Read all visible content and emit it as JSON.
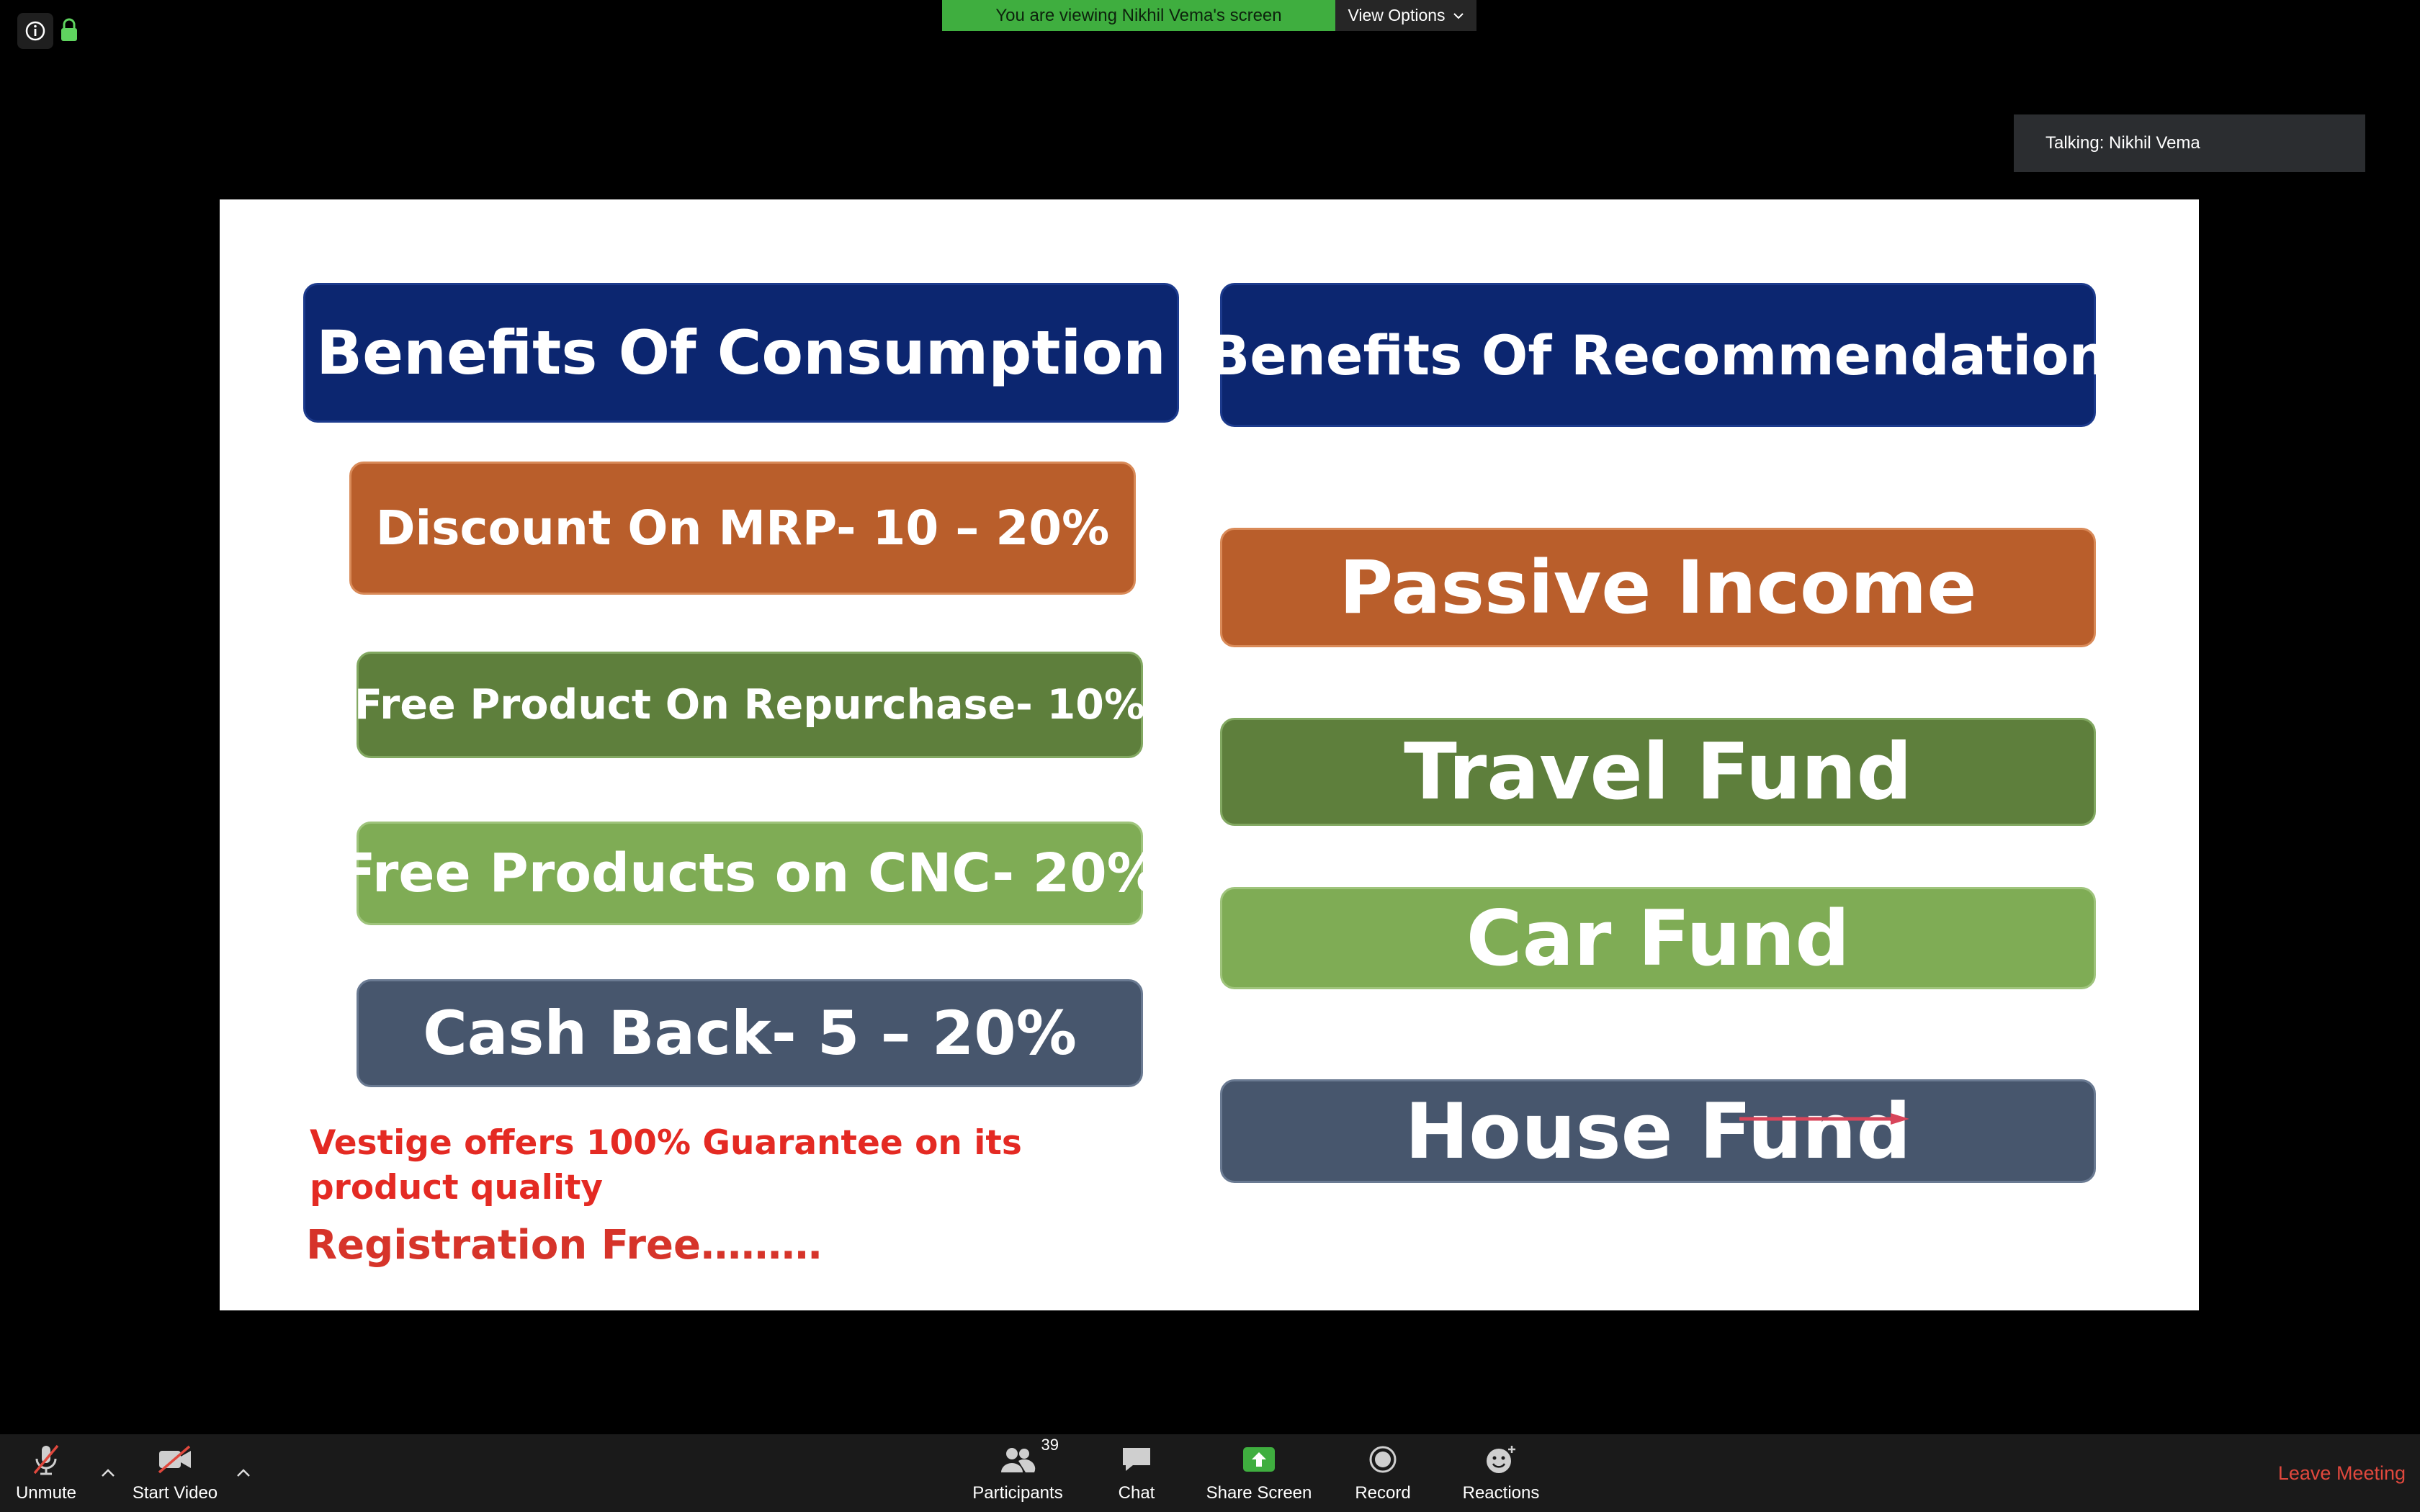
{
  "banner": {
    "viewing_text": "You are viewing Nikhil Vema's screen",
    "view_options_label": "View Options"
  },
  "talking": {
    "label": "Talking: Nikhil Vema"
  },
  "slide": {
    "left_heading": "Benefits Of Consumption",
    "right_heading": "Benefits Of Recommendation",
    "left_items": [
      "Discount On MRP- 10 – 20%",
      "Free Product On Repurchase- 10%",
      "Free Products on CNC- 20%",
      "Cash Back- 5 – 20%"
    ],
    "right_items": [
      "Passive Income",
      "Travel Fund",
      "Car Fund",
      "House Fund"
    ],
    "guarantee_text": "Vestige offers 100% Guarantee on its product quality",
    "registration_text": "Registration Free………"
  },
  "toolbar": {
    "unmute_label": "Unmute",
    "start_video_label": "Start Video",
    "participants_label": "Participants",
    "participants_count": "39",
    "chat_label": "Chat",
    "share_screen_label": "Share Screen",
    "record_label": "Record",
    "reactions_label": "Reactions",
    "leave_label": "Leave Meeting"
  },
  "colors": {
    "share_green": "#3fae3f",
    "leave_red": "#e0483d",
    "navy": "#0c2670",
    "orange": "#b95e2b",
    "dark_green": "#5e7f3c",
    "light_green": "#7fac55",
    "slate": "#47566d"
  }
}
